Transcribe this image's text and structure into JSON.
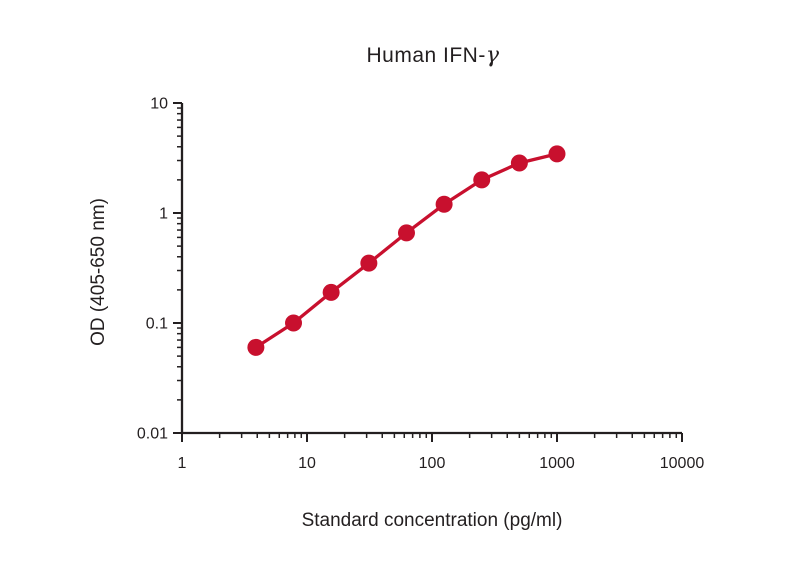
{
  "page": {
    "background_color": "#ffffff"
  },
  "header": {
    "title_prefix": "Human IFN-",
    "title_gamma": "γ"
  },
  "chart_data": {
    "type": "line",
    "scale": "log-log",
    "title": "Human IFN-γ",
    "xlabel": "Standard concentration (pg/ml)",
    "ylabel": "OD (405-650 nm)",
    "x": [
      3.9,
      7.8,
      15.6,
      31.25,
      62.5,
      125,
      250,
      500,
      1000
    ],
    "y": [
      0.06,
      0.1,
      0.19,
      0.35,
      0.66,
      1.2,
      2.0,
      2.85,
      3.45
    ],
    "xlim": [
      1,
      10000
    ],
    "ylim": [
      0.01,
      10
    ],
    "x_tick_labels": [
      "1",
      "10",
      "100",
      "1000",
      "10000"
    ],
    "y_tick_labels": [
      "0.01",
      "0.1",
      "1",
      "10"
    ],
    "grid": false,
    "legend": null,
    "series_color": "#C8102E",
    "axis_color": "#231F20"
  }
}
